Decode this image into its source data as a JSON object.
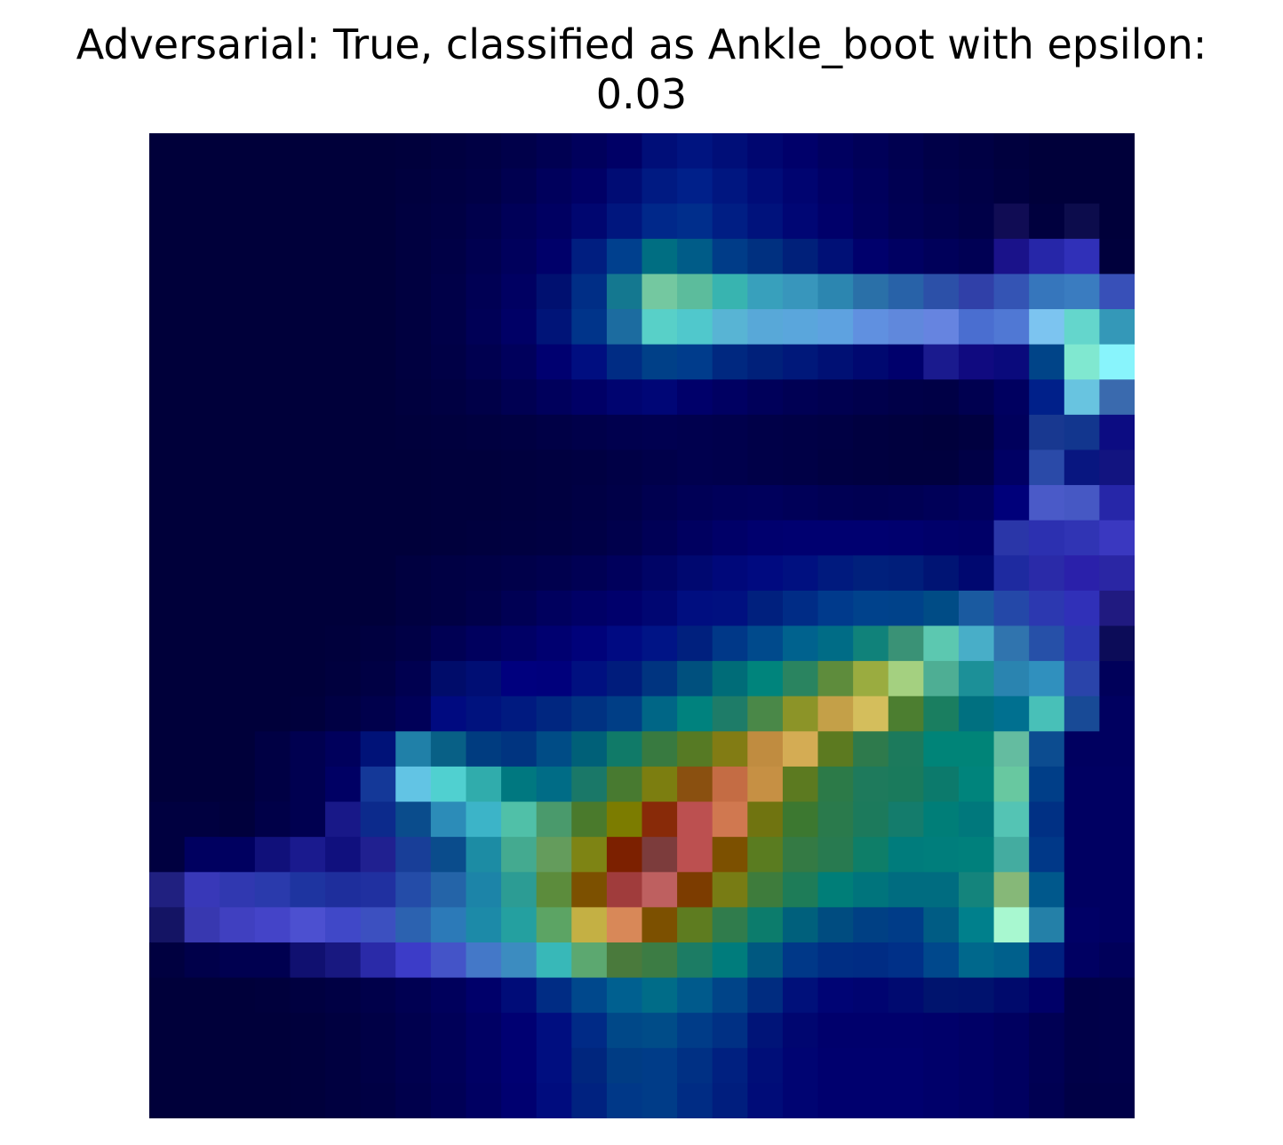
{
  "chart_data": {
    "type": "heatmap",
    "title_line1": "Adversarial: True, classified as Ankle_boot with epsilon:",
    "title_line2": "0.03",
    "xlabel": "",
    "ylabel": "",
    "axes_visible": false,
    "grid": false,
    "rows": 28,
    "cols": 28,
    "colors": [
      [
        "#00003a",
        "#00003a",
        "#00003a",
        "#00003a",
        "#00003a",
        "#00003a",
        "#00003a",
        "#00003c",
        "#000040",
        "#000044",
        "#00004a",
        "#000052",
        "#00005c",
        "#000066",
        "#000e78",
        "#001480",
        "#000e78",
        "#000670",
        "#00006a",
        "#000060",
        "#000058",
        "#000050",
        "#000048",
        "#000044",
        "#00003e",
        "#00003a",
        "#00003a",
        "#00003a"
      ],
      [
        "#00003a",
        "#00003a",
        "#00003a",
        "#00003a",
        "#00003a",
        "#00003a",
        "#00003a",
        "#00003e",
        "#000042",
        "#000046",
        "#000050",
        "#00005c",
        "#000066",
        "#000c74",
        "#001a82",
        "#00208a",
        "#001680",
        "#000c78",
        "#000470",
        "#000066",
        "#00005c",
        "#000052",
        "#00004a",
        "#000046",
        "#000040",
        "#00003a",
        "#00003a",
        "#00003a"
      ],
      [
        "#00003a",
        "#00003a",
        "#00003a",
        "#00003a",
        "#00003a",
        "#00003a",
        "#00003a",
        "#000040",
        "#000044",
        "#00004c",
        "#000058",
        "#000062",
        "#000670",
        "#00167e",
        "#00288a",
        "#002e8c",
        "#001e84",
        "#00127c",
        "#000674",
        "#00006a",
        "#00005e",
        "#000054",
        "#00004e",
        "#000048",
        "#100c54",
        "#00003e",
        "#0c0c4c",
        "#00003a"
      ],
      [
        "#00003a",
        "#00003a",
        "#00003a",
        "#00003a",
        "#00003a",
        "#00003a",
        "#00003a",
        "#000040",
        "#000046",
        "#000050",
        "#00005c",
        "#00006a",
        "#001e80",
        "#00408e",
        "#006e82",
        "#005c88",
        "#003c88",
        "#003080",
        "#00207a",
        "#001076",
        "#00006c",
        "#000062",
        "#00005a",
        "#000054",
        "#1a128a",
        "#2626a8",
        "#3030b8",
        "#00003c"
      ],
      [
        "#00003a",
        "#00003a",
        "#00003a",
        "#00003a",
        "#00003a",
        "#00003a",
        "#00003a",
        "#000040",
        "#000048",
        "#000054",
        "#000062",
        "#001070",
        "#002e86",
        "#147890",
        "#74c8a0",
        "#5cbc9c",
        "#38b4b0",
        "#38a0bc",
        "#3896bc",
        "#2c86b0",
        "#2a70a8",
        "#2862a8",
        "#2c50a8",
        "#3040a8",
        "#3454b4",
        "#3676bc",
        "#3a7cc0",
        "#3850b8"
      ],
      [
        "#00003a",
        "#00003a",
        "#00003a",
        "#00003a",
        "#00003a",
        "#00003a",
        "#00003a",
        "#000040",
        "#000048",
        "#000056",
        "#000066",
        "#001478",
        "#00348a",
        "#1c6ca0",
        "#58d0c8",
        "#50c8cc",
        "#58b4d4",
        "#58a8d8",
        "#5aa6dc",
        "#5ea2e0",
        "#6090e0",
        "#6088dc",
        "#6684e0",
        "#4a6ed0",
        "#5078d4",
        "#7cc4f0",
        "#64d6cc",
        "#3498b8"
      ],
      [
        "#00003a",
        "#00003a",
        "#00003a",
        "#00003a",
        "#00003a",
        "#00003a",
        "#00003a",
        "#000040",
        "#000046",
        "#000050",
        "#00005c",
        "#000070",
        "#000e80",
        "#002c84",
        "#004088",
        "#003c8c",
        "#002880",
        "#00207a",
        "#00187a",
        "#001074",
        "#000870",
        "#00006c",
        "#1a1a8e",
        "#100a80",
        "#0a0a7c",
        "#004488",
        "#80e8d0",
        "#88f4fc"
      ],
      [
        "#00003a",
        "#00003a",
        "#00003a",
        "#00003a",
        "#00003a",
        "#00003a",
        "#00003a",
        "#00003e",
        "#000042",
        "#000048",
        "#000052",
        "#00005c",
        "#000066",
        "#000470",
        "#000676",
        "#00006a",
        "#000062",
        "#00005a",
        "#000054",
        "#000050",
        "#00004c",
        "#000048",
        "#000046",
        "#000050",
        "#000060",
        "#00208a",
        "#68c4e0",
        "#3a6aae"
      ],
      [
        "#00003a",
        "#00003a",
        "#00003a",
        "#00003a",
        "#00003a",
        "#00003a",
        "#00003a",
        "#00003c",
        "#00003e",
        "#000040",
        "#000042",
        "#000046",
        "#00004a",
        "#00004e",
        "#000050",
        "#00004e",
        "#00004c",
        "#000048",
        "#000046",
        "#000044",
        "#000040",
        "#00003e",
        "#00003c",
        "#000040",
        "#00005c",
        "#183890",
        "#12368e",
        "#0c0c82"
      ],
      [
        "#00003a",
        "#00003a",
        "#00003a",
        "#00003a",
        "#00003a",
        "#00003a",
        "#00003a",
        "#00003a",
        "#00003c",
        "#00003c",
        "#00003e",
        "#000040",
        "#000042",
        "#000046",
        "#00004a",
        "#00004e",
        "#00004c",
        "#000048",
        "#000046",
        "#000042",
        "#000040",
        "#00003e",
        "#00003e",
        "#000046",
        "#000064",
        "#2a4aa8",
        "#081680",
        "#121480"
      ],
      [
        "#00003a",
        "#00003a",
        "#00003a",
        "#00003a",
        "#00003a",
        "#00003a",
        "#00003a",
        "#00003a",
        "#00003c",
        "#00003c",
        "#00003e",
        "#000040",
        "#000044",
        "#000048",
        "#000050",
        "#000056",
        "#00005a",
        "#00005c",
        "#000058",
        "#000054",
        "#000052",
        "#000054",
        "#000058",
        "#00005e",
        "#00007a",
        "#4a5ac8",
        "#4658c4",
        "#2626a8"
      ],
      [
        "#00003a",
        "#00003a",
        "#00003a",
        "#00003a",
        "#00003a",
        "#00003a",
        "#00003a",
        "#00003a",
        "#00003c",
        "#00003e",
        "#000040",
        "#000042",
        "#000046",
        "#00004c",
        "#000056",
        "#000060",
        "#000068",
        "#00006e",
        "#000070",
        "#000070",
        "#000070",
        "#00006e",
        "#00006a",
        "#000068",
        "#2a36a8",
        "#2c30b0",
        "#3034b4",
        "#3a38c0"
      ],
      [
        "#00003a",
        "#00003a",
        "#00003a",
        "#00003a",
        "#00003a",
        "#00003a",
        "#00003a",
        "#000040",
        "#000044",
        "#000046",
        "#00004a",
        "#00004e",
        "#000054",
        "#00005c",
        "#000466",
        "#000870",
        "#00087a",
        "#000a80",
        "#001080",
        "#001a7e",
        "#00207c",
        "#001e7a",
        "#001474",
        "#000870",
        "#1e2aa0",
        "#2a2aa8",
        "#2a20aa",
        "#2a26a4"
      ],
      [
        "#00003a",
        "#00003a",
        "#00003a",
        "#00003a",
        "#00003a",
        "#00003a",
        "#00003a",
        "#000040",
        "#000044",
        "#00004a",
        "#000054",
        "#00005e",
        "#000066",
        "#00006c",
        "#000672",
        "#000e80",
        "#001080",
        "#00207e",
        "#002c86",
        "#003a8c",
        "#00428c",
        "#00428a",
        "#004c86",
        "#1a5aa0",
        "#2448a8",
        "#2c38b0",
        "#3030b8",
        "#201a80"
      ],
      [
        "#00003a",
        "#00003a",
        "#00003a",
        "#00003a",
        "#00003a",
        "#00003c",
        "#000040",
        "#000046",
        "#000054",
        "#00005e",
        "#000066",
        "#000070",
        "#00027a",
        "#000a82",
        "#001486",
        "#00207e",
        "#003888",
        "#004a8c",
        "#00628e",
        "#006c86",
        "#10827a",
        "#3a9276",
        "#5cc8b0",
        "#48aec8",
        "#3074ae",
        "#2650a8",
        "#2a36b0",
        "#0c0c58"
      ],
      [
        "#00003a",
        "#00003a",
        "#00003a",
        "#00003a",
        "#00003a",
        "#00003e",
        "#000044",
        "#000050",
        "#000c6a",
        "#000e74",
        "#00007e",
        "#00007c",
        "#001080",
        "#001c7c",
        "#003480",
        "#00507e",
        "#006c78",
        "#00847c",
        "#2a8460",
        "#5e8c3c",
        "#9aac40",
        "#a4d080",
        "#4eae94",
        "#1c9098",
        "#2a84b0",
        "#3090be",
        "#2a44aa",
        "#00005a"
      ],
      [
        "#00003a",
        "#00003a",
        "#00003a",
        "#00003a",
        "#00003c",
        "#000044",
        "#00004c",
        "#000058",
        "#000a80",
        "#00127e",
        "#001a80",
        "#002680",
        "#003282",
        "#003e86",
        "#006686",
        "#00827e",
        "#1e7c68",
        "#4a8848",
        "#8c9428",
        "#c4a048",
        "#d4be5c",
        "#4c7e30",
        "#1a7e60",
        "#007080",
        "#007090",
        "#48c0b8",
        "#184a96",
        "#000060"
      ],
      [
        "#00003a",
        "#00003a",
        "#00003a",
        "#000044",
        "#000050",
        "#00005c",
        "#001278",
        "#2080a8",
        "#086086",
        "#003c80",
        "#003480",
        "#004c86",
        "#006078",
        "#107a68",
        "#387a40",
        "#567a24",
        "#827c14",
        "#c08c40",
        "#d4ac54",
        "#5c7a20",
        "#2e7a4c",
        "#1c7a5c",
        "#008478",
        "#008478",
        "#64bca0",
        "#0c4c90",
        "#000060",
        "#000060"
      ],
      [
        "#00003a",
        "#00003a",
        "#00003a",
        "#000044",
        "#000050",
        "#000064",
        "#143898",
        "#62c4e4",
        "#50d0d0",
        "#30acac",
        "#007880",
        "#006c86",
        "#1a7868",
        "#487a30",
        "#7c7e10",
        "#8a5010",
        "#c46c44",
        "#c69044",
        "#5c7a20",
        "#2c7a48",
        "#1e7a5c",
        "#1a7a5c",
        "#0c7a6c",
        "#00847c",
        "#68c8a0",
        "#003e88",
        "#000062",
        "#000062"
      ],
      [
        "#000040",
        "#000040",
        "#00003c",
        "#000048",
        "#000050",
        "#181888",
        "#0c2a8c",
        "#0a4c8c",
        "#2c8cb8",
        "#3cb4c8",
        "#50c0a8",
        "#4a9a6c",
        "#4a7a2c",
        "#7c7c00",
        "#882a08",
        "#bc5050",
        "#d07850",
        "#707410",
        "#3c7830",
        "#2a7a4c",
        "#1c7a5c",
        "#147c6c",
        "#007e78",
        "#00787c",
        "#54c4b4",
        "#003084",
        "#000062",
        "#000062"
      ],
      [
        "#000040",
        "#000060",
        "#000060",
        "#10107a",
        "#1a1a8e",
        "#10107e",
        "#202090",
        "#183e98",
        "#0a4c8c",
        "#1c8ca4",
        "#44aa90",
        "#649c5c",
        "#7e8414",
        "#7c2000",
        "#7c3c3c",
        "#bc5050",
        "#7c5000",
        "#5a7c20",
        "#347a44",
        "#287a50",
        "#0e7e68",
        "#007c7c",
        "#007e7c",
        "#00807c",
        "#44aca0",
        "#003888",
        "#000062",
        "#000062"
      ],
      [
        "#202080",
        "#3838b8",
        "#3038b0",
        "#2a3aac",
        "#1e34a0",
        "#1e2e9c",
        "#2030a0",
        "#244ca8",
        "#2464a8",
        "#1c84a8",
        "#2c9c94",
        "#5c8c3c",
        "#7c5000",
        "#a03c3c",
        "#be6060",
        "#7c3c00",
        "#787c14",
        "#3e7c3c",
        "#1e7c58",
        "#007e78",
        "#00747c",
        "#006c80",
        "#006c80",
        "#14847c",
        "#86b878",
        "#00588c",
        "#000062",
        "#000062"
      ],
      [
        "#141464",
        "#3838b0",
        "#4040c0",
        "#4444c8",
        "#4c50d0",
        "#4048c8",
        "#3c50c0",
        "#2c62b0",
        "#2c7ab8",
        "#1c8aa8",
        "#24a0a0",
        "#5ca464",
        "#c4b044",
        "#d88858",
        "#7c5000",
        "#5e7c20",
        "#307c4c",
        "#0c7c6c",
        "#00607c",
        "#004c80",
        "#004084",
        "#003c88",
        "#005c84",
        "#00808c",
        "#a8f8d0",
        "#2480a8",
        "#000066",
        "#000062"
      ],
      [
        "#000040",
        "#00004a",
        "#000050",
        "#000050",
        "#101070",
        "#181880",
        "#2a2aa8",
        "#3c3cc8",
        "#4454c8",
        "#4478c8",
        "#3c8cc0",
        "#38b8b8",
        "#5ca870",
        "#4a7a3c",
        "#3c7c44",
        "#1c7c64",
        "#007c7c",
        "#005880",
        "#003888",
        "#002e84",
        "#002c84",
        "#003088",
        "#00488c",
        "#00688c",
        "#00608c",
        "#002080",
        "#000062",
        "#00005a"
      ],
      [
        "#00003a",
        "#00003a",
        "#00003a",
        "#00003c",
        "#000040",
        "#000044",
        "#00004a",
        "#000052",
        "#00005c",
        "#00006a",
        "#000c78",
        "#002c84",
        "#00488c",
        "#006090",
        "#006c88",
        "#005a8c",
        "#004488",
        "#002c80",
        "#00107a",
        "#000474",
        "#000470",
        "#000a70",
        "#00146e",
        "#00126e",
        "#000a6c",
        "#000068",
        "#000048",
        "#00004a"
      ],
      [
        "#00003a",
        "#00003a",
        "#00003a",
        "#00003a",
        "#00003c",
        "#000040",
        "#000046",
        "#00004e",
        "#000058",
        "#000064",
        "#000072",
        "#000e80",
        "#002a86",
        "#004888",
        "#004c88",
        "#003c88",
        "#003084",
        "#001478",
        "#000670",
        "#00006c",
        "#00006c",
        "#00006c",
        "#00006a",
        "#000066",
        "#000060",
        "#000054",
        "#000048",
        "#00004a"
      ],
      [
        "#00003a",
        "#00003a",
        "#00003a",
        "#00003a",
        "#00003c",
        "#000040",
        "#000046",
        "#00004e",
        "#000058",
        "#000064",
        "#000072",
        "#000e80",
        "#00267e",
        "#003c84",
        "#003c88",
        "#003084",
        "#002080",
        "#000e78",
        "#000472",
        "#00006e",
        "#00006e",
        "#00006e",
        "#00006a",
        "#000066",
        "#000060",
        "#000054",
        "#000048",
        "#00004a"
      ],
      [
        "#00003a",
        "#00003a",
        "#00003a",
        "#00003a",
        "#00003c",
        "#000040",
        "#000044",
        "#00004c",
        "#000056",
        "#000062",
        "#000070",
        "#000c7e",
        "#002280",
        "#003888",
        "#003c88",
        "#002c84",
        "#001e7e",
        "#000c78",
        "#000472",
        "#00006e",
        "#00006e",
        "#00006e",
        "#00006a",
        "#000066",
        "#000060",
        "#000052",
        "#000046",
        "#000048"
      ]
    ]
  }
}
